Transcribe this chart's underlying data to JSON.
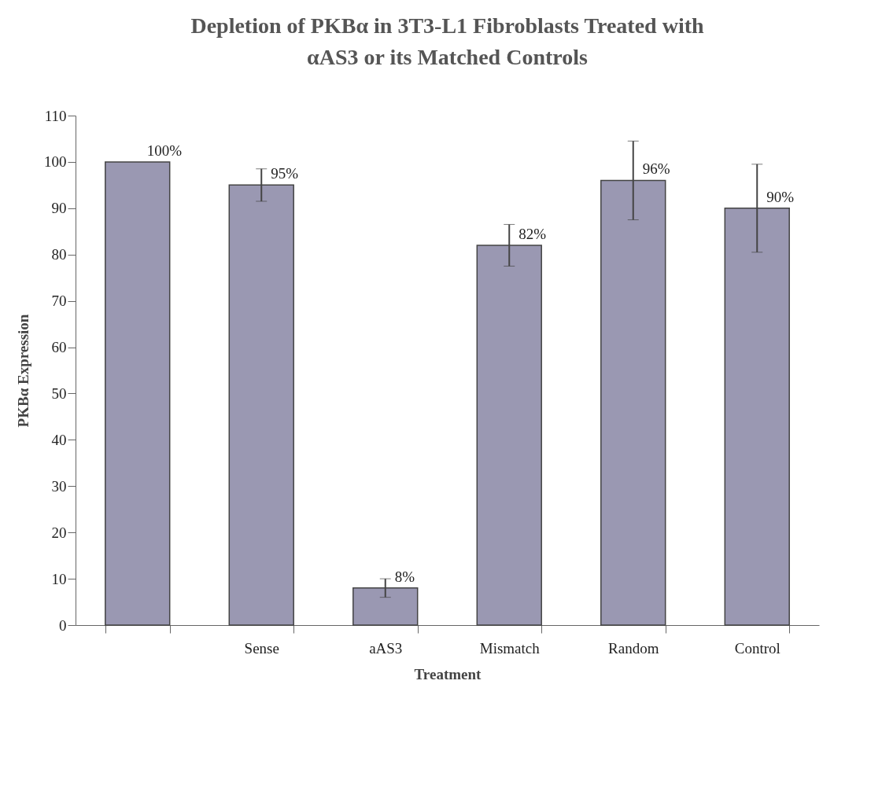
{
  "chart_data": {
    "type": "bar",
    "title": "Depletion of PKBα in 3T3-L1 Fibroblasts Treated with αAS3 or its Matched Controls",
    "xlabel": "Treatment",
    "ylabel": "PKBα Expression",
    "categories": [
      null,
      "Sense",
      "aAS3",
      "Mismatch",
      "Random",
      "Control"
    ],
    "values": [
      100,
      95,
      8,
      82,
      96,
      90
    ],
    "errors": [
      null,
      3.5,
      2,
      4.5,
      8.5,
      9.5
    ],
    "value_labels": [
      "100%",
      "95%",
      "8%",
      "82%",
      "96%",
      "90%"
    ],
    "color": "#9a98b2",
    "ylim": [
      0,
      110
    ],
    "yticks": [
      0,
      10,
      20,
      30,
      40,
      50,
      60,
      70,
      80,
      90,
      100,
      110
    ]
  }
}
